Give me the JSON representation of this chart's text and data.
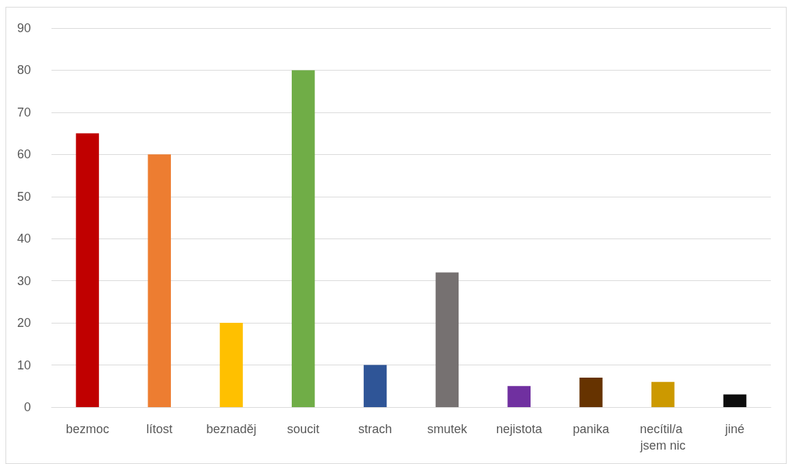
{
  "chart_data": {
    "type": "bar",
    "categories": [
      "bezmoc",
      "lítost",
      "beznaděj",
      "soucit",
      "strach",
      "smutek",
      "nejistota",
      "panika",
      "necítil/a jsem nic",
      "jiné"
    ],
    "values": [
      65,
      60,
      20,
      80,
      10,
      32,
      5,
      7,
      6,
      3
    ],
    "colors": [
      "#c00000",
      "#ed7d31",
      "#ffc000",
      "#70ad47",
      "#2f5597",
      "#767171",
      "#7030a0",
      "#663300",
      "#cc9900",
      "#0d0d0d"
    ],
    "ylim": [
      0,
      90
    ],
    "yticks": [
      0,
      10,
      20,
      30,
      40,
      50,
      60,
      70,
      80,
      90
    ],
    "grid": "y"
  }
}
